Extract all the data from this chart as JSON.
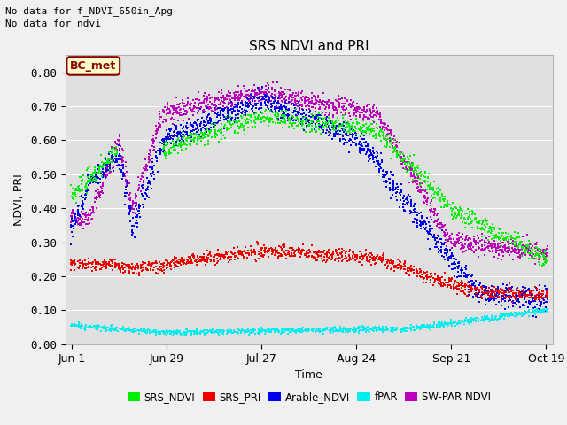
{
  "title": "SRS NDVI and PRI",
  "ylabel": "NDVI, PRI",
  "xlabel": "Time",
  "top_left_text_line1": "No data for f_NDVI_650in_Apg",
  "top_left_text_line2": "No data for ndvi",
  "annotation": "BC_met",
  "ylim": [
    0.0,
    0.85
  ],
  "yticks": [
    0.0,
    0.1,
    0.2,
    0.3,
    0.4,
    0.5,
    0.6,
    0.7,
    0.8
  ],
  "xtick_labels": [
    "Jun 1",
    "Jun 29",
    "Jul 27",
    "Aug 24",
    "Sep 21",
    "Oct 19"
  ],
  "tick_days": [
    0,
    28,
    56,
    84,
    112,
    140
  ],
  "n_days": 141,
  "background_color": "#e0e0e0",
  "fig_facecolor": "#f0f0f0",
  "colors": {
    "SRS_NDVI": "#00ee00",
    "SRS_PRI": "#ee0000",
    "Arable_NDVI": "#0000ee",
    "fPAR": "#00eeee",
    "SW_PAR_NDVI": "#bb00bb"
  },
  "legend_labels": [
    "SRS_NDVI",
    "SRS_PRI",
    "Arable_NDVI",
    "fPAR",
    "SW-PAR NDVI"
  ]
}
